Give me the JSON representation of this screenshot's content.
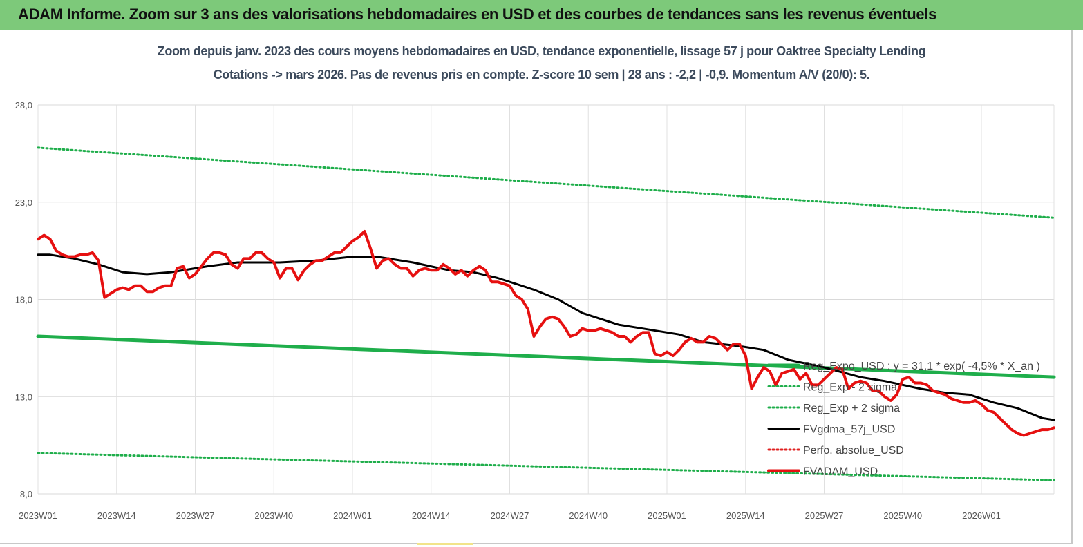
{
  "header": {
    "title": "ADAM Informe. Zoom sur 3 ans des valorisations hebdomadaires en USD et des courbes de tendances sans les revenus éventuels"
  },
  "chart_data": {
    "type": "line",
    "title": "Zoom depuis janv. 2023 des cours moyens hebdomadaires en USD, tendance exponentielle, lissage 57 j pour Oaktree Specialty Lending",
    "subtitle": "Cotations -> mars 2026. Pas de revenus pris en compte. Z-score 10 sem | 28 ans : -2,2 | -0,9. Momentum A/V (20/0): 5.",
    "xlabel": "",
    "ylabel": "",
    "ylim": [
      8.0,
      28.0
    ],
    "y_ticks": [
      "8,0",
      "13,0",
      "18,0",
      "23,0",
      "28,0"
    ],
    "x_ticks": [
      "2023W01",
      "2023W14",
      "2023W27",
      "2023W40",
      "2024W01",
      "2024W14",
      "2024W27",
      "2024W40",
      "2025W01",
      "2025W14",
      "2025W27",
      "2025W40",
      "2026W01"
    ],
    "grid": true,
    "legend_position": "right",
    "week_count": 169,
    "series": [
      {
        "name": "Reg_Expo_USD : y = 31,1 * exp( -4,5% * X_an )",
        "color": "#1fae4b",
        "style": "thick",
        "points": [
          [
            0,
            16.1
          ],
          [
            168,
            14.0
          ]
        ]
      },
      {
        "name": "Reg_Exp - 2 sigma",
        "color": "#1fae4b",
        "style": "dotted",
        "points": [
          [
            0,
            10.1
          ],
          [
            168,
            8.7
          ]
        ]
      },
      {
        "name": "Reg_Exp + 2 sigma",
        "color": "#1fae4b",
        "style": "dotted",
        "points": [
          [
            0,
            25.8
          ],
          [
            168,
            22.2
          ]
        ]
      },
      {
        "name": "FVgdma_57j_USD",
        "color": "#000000",
        "style": "solid",
        "points": [
          [
            0,
            20.3
          ],
          [
            2,
            20.3
          ],
          [
            6,
            20.1
          ],
          [
            10,
            19.8
          ],
          [
            14,
            19.4
          ],
          [
            18,
            19.3
          ],
          [
            22,
            19.4
          ],
          [
            28,
            19.7
          ],
          [
            33,
            19.9
          ],
          [
            40,
            19.9
          ],
          [
            46,
            20.0
          ],
          [
            52,
            20.2
          ],
          [
            56,
            20.2
          ],
          [
            62,
            19.9
          ],
          [
            68,
            19.5
          ],
          [
            72,
            19.4
          ],
          [
            76,
            19.1
          ],
          [
            82,
            18.5
          ],
          [
            86,
            18.0
          ],
          [
            90,
            17.3
          ],
          [
            96,
            16.7
          ],
          [
            100,
            16.5
          ],
          [
            106,
            16.2
          ],
          [
            110,
            15.8
          ],
          [
            116,
            15.6
          ],
          [
            120,
            15.4
          ],
          [
            124,
            14.9
          ],
          [
            130,
            14.5
          ],
          [
            136,
            14.0
          ],
          [
            140,
            13.8
          ],
          [
            146,
            13.4
          ],
          [
            150,
            13.2
          ],
          [
            154,
            13.1
          ],
          [
            158,
            12.7
          ],
          [
            162,
            12.4
          ],
          [
            166,
            11.9
          ],
          [
            168,
            11.8
          ]
        ]
      },
      {
        "name": "Perfo. absolue_USD",
        "color": "#e02020",
        "style": "dotted",
        "points": []
      },
      {
        "name": "FVADAM_USD",
        "color": "#e61010",
        "style": "thick",
        "points": [
          [
            0,
            21.1
          ],
          [
            1,
            21.3
          ],
          [
            2,
            21.1
          ],
          [
            3,
            20.5
          ],
          [
            4,
            20.3
          ],
          [
            5,
            20.2
          ],
          [
            6,
            20.2
          ],
          [
            7,
            20.3
          ],
          [
            8,
            20.3
          ],
          [
            9,
            20.4
          ],
          [
            10,
            20.0
          ],
          [
            11,
            18.1
          ],
          [
            12,
            18.3
          ],
          [
            13,
            18.5
          ],
          [
            14,
            18.6
          ],
          [
            15,
            18.5
          ],
          [
            16,
            18.7
          ],
          [
            17,
            18.7
          ],
          [
            18,
            18.4
          ],
          [
            19,
            18.4
          ],
          [
            20,
            18.6
          ],
          [
            21,
            18.7
          ],
          [
            22,
            18.7
          ],
          [
            23,
            19.6
          ],
          [
            24,
            19.7
          ],
          [
            25,
            19.1
          ],
          [
            26,
            19.3
          ],
          [
            27,
            19.7
          ],
          [
            28,
            20.1
          ],
          [
            29,
            20.4
          ],
          [
            30,
            20.4
          ],
          [
            31,
            20.3
          ],
          [
            32,
            19.8
          ],
          [
            33,
            19.6
          ],
          [
            34,
            20.1
          ],
          [
            35,
            20.1
          ],
          [
            36,
            20.4
          ],
          [
            37,
            20.4
          ],
          [
            38,
            20.1
          ],
          [
            39,
            19.9
          ],
          [
            40,
            19.1
          ],
          [
            41,
            19.6
          ],
          [
            42,
            19.6
          ],
          [
            43,
            19.0
          ],
          [
            44,
            19.5
          ],
          [
            45,
            19.8
          ],
          [
            46,
            20.0
          ],
          [
            47,
            20.0
          ],
          [
            48,
            20.2
          ],
          [
            49,
            20.4
          ],
          [
            50,
            20.4
          ],
          [
            51,
            20.7
          ],
          [
            52,
            21.0
          ],
          [
            53,
            21.2
          ],
          [
            54,
            21.5
          ],
          [
            55,
            20.6
          ],
          [
            56,
            19.6
          ],
          [
            57,
            20.0
          ],
          [
            58,
            20.1
          ],
          [
            59,
            19.8
          ],
          [
            60,
            19.6
          ],
          [
            61,
            19.6
          ],
          [
            62,
            19.2
          ],
          [
            63,
            19.5
          ],
          [
            64,
            19.6
          ],
          [
            65,
            19.5
          ],
          [
            66,
            19.5
          ],
          [
            67,
            19.8
          ],
          [
            68,
            19.6
          ],
          [
            69,
            19.3
          ],
          [
            70,
            19.5
          ],
          [
            71,
            19.2
          ],
          [
            72,
            19.5
          ],
          [
            73,
            19.7
          ],
          [
            74,
            19.5
          ],
          [
            75,
            18.9
          ],
          [
            76,
            18.9
          ],
          [
            77,
            18.8
          ],
          [
            78,
            18.7
          ],
          [
            79,
            18.2
          ],
          [
            80,
            18.0
          ],
          [
            81,
            17.5
          ],
          [
            82,
            16.1
          ],
          [
            83,
            16.6
          ],
          [
            84,
            17.0
          ],
          [
            85,
            17.1
          ],
          [
            86,
            17.0
          ],
          [
            87,
            16.6
          ],
          [
            88,
            16.1
          ],
          [
            89,
            16.2
          ],
          [
            90,
            16.5
          ],
          [
            91,
            16.4
          ],
          [
            92,
            16.4
          ],
          [
            93,
            16.5
          ],
          [
            94,
            16.4
          ],
          [
            95,
            16.3
          ],
          [
            96,
            16.1
          ],
          [
            97,
            16.1
          ],
          [
            98,
            15.8
          ],
          [
            99,
            16.1
          ],
          [
            100,
            16.3
          ],
          [
            101,
            16.3
          ],
          [
            102,
            15.2
          ],
          [
            103,
            15.1
          ],
          [
            104,
            15.3
          ],
          [
            105,
            15.1
          ],
          [
            106,
            15.4
          ],
          [
            107,
            15.8
          ],
          [
            108,
            16.0
          ],
          [
            109,
            15.8
          ],
          [
            110,
            15.8
          ],
          [
            111,
            16.1
          ],
          [
            112,
            16.0
          ],
          [
            113,
            15.7
          ],
          [
            114,
            15.4
          ],
          [
            115,
            15.7
          ],
          [
            116,
            15.7
          ],
          [
            117,
            15.1
          ],
          [
            118,
            13.4
          ],
          [
            119,
            14.0
          ],
          [
            120,
            14.5
          ],
          [
            121,
            14.3
          ],
          [
            122,
            13.6
          ],
          [
            123,
            14.2
          ],
          [
            124,
            14.3
          ],
          [
            125,
            14.4
          ],
          [
            126,
            13.9
          ],
          [
            127,
            14.2
          ],
          [
            128,
            13.6
          ],
          [
            129,
            13.6
          ],
          [
            130,
            13.9
          ],
          [
            131,
            14.2
          ],
          [
            132,
            14.5
          ],
          [
            133,
            14.4
          ],
          [
            134,
            13.4
          ],
          [
            135,
            13.7
          ],
          [
            136,
            13.8
          ],
          [
            137,
            13.7
          ],
          [
            138,
            13.3
          ],
          [
            139,
            13.3
          ],
          [
            140,
            13.0
          ],
          [
            141,
            12.8
          ],
          [
            142,
            13.1
          ],
          [
            143,
            13.9
          ],
          [
            144,
            14.0
          ],
          [
            145,
            13.7
          ],
          [
            146,
            13.7
          ],
          [
            147,
            13.6
          ],
          [
            148,
            13.3
          ],
          [
            149,
            13.2
          ],
          [
            150,
            13.1
          ],
          [
            151,
            12.9
          ],
          [
            152,
            12.8
          ],
          [
            153,
            12.7
          ],
          [
            154,
            12.7
          ],
          [
            155,
            12.8
          ],
          [
            156,
            12.6
          ],
          [
            157,
            12.3
          ],
          [
            158,
            12.2
          ],
          [
            159,
            11.9
          ],
          [
            160,
            11.6
          ],
          [
            161,
            11.3
          ],
          [
            162,
            11.1
          ],
          [
            163,
            11.0
          ],
          [
            164,
            11.1
          ],
          [
            165,
            11.2
          ],
          [
            166,
            11.3
          ],
          [
            167,
            11.3
          ],
          [
            168,
            11.4
          ]
        ]
      }
    ]
  }
}
